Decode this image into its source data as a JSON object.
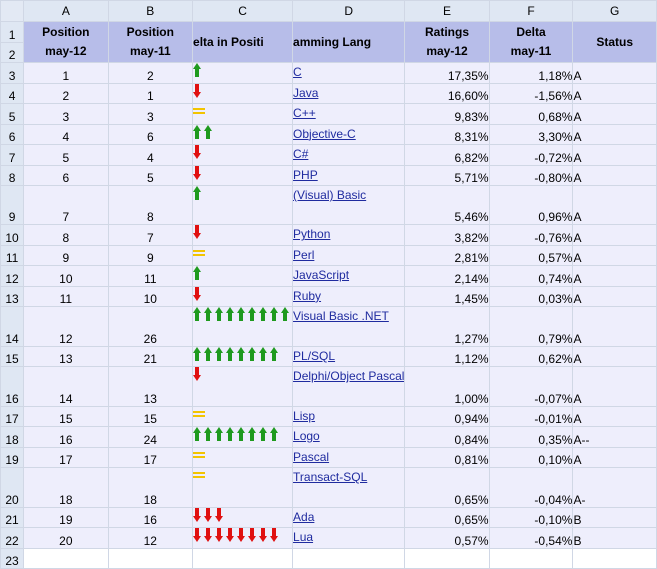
{
  "column_letters": [
    "A",
    "B",
    "C",
    "D",
    "E",
    "F",
    "G"
  ],
  "headers": [
    {
      "line1": "Position",
      "line2": "may-12"
    },
    {
      "line1": "Position",
      "line2": "may-11"
    },
    {
      "line1": "elta in Positi",
      "line2": ""
    },
    {
      "line1": "amming Lang",
      "line2": ""
    },
    {
      "line1": "Ratings",
      "line2": "may-12"
    },
    {
      "line1": "Delta",
      "line2": "may-11"
    },
    {
      "line1": "Status",
      "line2": ""
    }
  ],
  "rows": [
    {
      "row": "3",
      "pos12": "1",
      "pos11": "2",
      "lang": "C",
      "rating": "17,35%",
      "delta": "1,18%",
      "status": "A",
      "arrow": {
        "dir": "up",
        "count": 1
      }
    },
    {
      "row": "4",
      "pos12": "2",
      "pos11": "1",
      "lang": "Java",
      "rating": "16,60%",
      "delta": "-1,56%",
      "status": "A",
      "arrow": {
        "dir": "down",
        "count": 1
      }
    },
    {
      "row": "5",
      "pos12": "3",
      "pos11": "3",
      "lang": "C++",
      "rating": "9,83%",
      "delta": "0,68%",
      "status": "A",
      "arrow": {
        "dir": "same",
        "count": 1
      }
    },
    {
      "row": "6",
      "pos12": "4",
      "pos11": "6",
      "lang": "Objective-C",
      "rating": "8,31%",
      "delta": "3,30%",
      "status": "A",
      "arrow": {
        "dir": "up",
        "count": 2
      }
    },
    {
      "row": "7",
      "pos12": "5",
      "pos11": "4",
      "lang": "C#",
      "rating": "6,82%",
      "delta": "-0,72%",
      "status": "A",
      "arrow": {
        "dir": "down",
        "count": 1
      }
    },
    {
      "row": "8",
      "pos12": "6",
      "pos11": "5",
      "lang": "PHP",
      "rating": "5,71%",
      "delta": "-0,80%",
      "status": "A",
      "arrow": {
        "dir": "down",
        "count": 1
      }
    },
    {
      "row": "9",
      "pos12": "7",
      "pos11": "8",
      "lang": "(Visual) Basic",
      "rating": "5,46%",
      "delta": "0,96%",
      "status": "A",
      "arrow": {
        "dir": "up",
        "count": 1
      },
      "tall": true
    },
    {
      "row": "10",
      "pos12": "8",
      "pos11": "7",
      "lang": "Python",
      "rating": "3,82%",
      "delta": "-0,76%",
      "status": "A",
      "arrow": {
        "dir": "down",
        "count": 1
      }
    },
    {
      "row": "11",
      "pos12": "9",
      "pos11": "9",
      "lang": "Perl",
      "rating": "2,81%",
      "delta": "0,57%",
      "status": "A",
      "arrow": {
        "dir": "same",
        "count": 1
      }
    },
    {
      "row": "12",
      "pos12": "10",
      "pos11": "11",
      "lang": "JavaScript",
      "rating": "2,14%",
      "delta": "0,74%",
      "status": "A",
      "arrow": {
        "dir": "up",
        "count": 1
      }
    },
    {
      "row": "13",
      "pos12": "11",
      "pos11": "10",
      "lang": "Ruby",
      "rating": "1,45%",
      "delta": "0,03%",
      "status": "A",
      "arrow": {
        "dir": "down",
        "count": 1
      }
    },
    {
      "row": "14",
      "pos12": "12",
      "pos11": "26",
      "lang": "Visual Basic .NET",
      "rating": "1,27%",
      "delta": "0,79%",
      "status": "A",
      "arrow": {
        "dir": "up",
        "count": 9
      },
      "tall": true
    },
    {
      "row": "15",
      "pos12": "13",
      "pos11": "21",
      "lang": "PL/SQL",
      "rating": "1,12%",
      "delta": "0,62%",
      "status": "A",
      "arrow": {
        "dir": "up",
        "count": 8
      }
    },
    {
      "row": "16",
      "pos12": "14",
      "pos11": "13",
      "lang": "Delphi/Object Pascal",
      "rating": "1,00%",
      "delta": "-0,07%",
      "status": "A",
      "arrow": {
        "dir": "down",
        "count": 1
      },
      "tall": true
    },
    {
      "row": "17",
      "pos12": "15",
      "pos11": "15",
      "lang": "Lisp",
      "rating": "0,94%",
      "delta": "-0,01%",
      "status": "A",
      "arrow": {
        "dir": "same",
        "count": 1
      }
    },
    {
      "row": "18",
      "pos12": "16",
      "pos11": "24",
      "lang": "Logo",
      "rating": "0,84%",
      "delta": "0,35%",
      "status": "A--",
      "arrow": {
        "dir": "up",
        "count": 8
      }
    },
    {
      "row": "19",
      "pos12": "17",
      "pos11": "17",
      "lang": "Pascal",
      "rating": "0,81%",
      "delta": "0,10%",
      "status": "A",
      "arrow": {
        "dir": "same",
        "count": 1
      }
    },
    {
      "row": "20",
      "pos12": "18",
      "pos11": "18",
      "lang": "Transact-SQL",
      "rating": "0,65%",
      "delta": "-0,04%",
      "status": "A-",
      "arrow": {
        "dir": "same",
        "count": 1
      },
      "tall": true
    },
    {
      "row": "21",
      "pos12": "19",
      "pos11": "16",
      "lang": "Ada",
      "rating": "0,65%",
      "delta": "-0,10%",
      "status": "B",
      "arrow": {
        "dir": "down",
        "count": 3
      }
    },
    {
      "row": "22",
      "pos12": "20",
      "pos11": "12",
      "lang": "Lua",
      "rating": "0,57%",
      "delta": "-0,54%",
      "status": "B",
      "arrow": {
        "dir": "down",
        "count": 8
      }
    }
  ],
  "header_row_numbers": [
    "1",
    "2"
  ],
  "next_row_number": "23",
  "colors": {
    "header_fill": "#b7bde9",
    "cell_fill": "#eeeefc",
    "up": "#1e9a1e",
    "down": "#e01010",
    "same": "#f2c400",
    "link": "#1f2b9f"
  }
}
